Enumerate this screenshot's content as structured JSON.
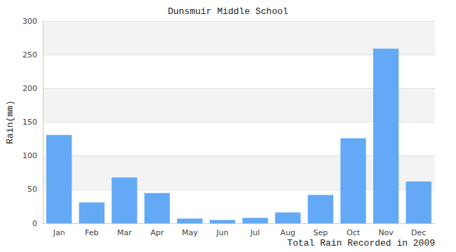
{
  "chart_data": {
    "type": "bar",
    "title": "Dunsmuir Middle School",
    "x_label": "Total Rain Recorded in 2009",
    "y_label": "Rain(mm)",
    "categories": [
      "Jan",
      "Feb",
      "Mar",
      "Apr",
      "May",
      "Jun",
      "Jul",
      "Aug",
      "Sep",
      "Oct",
      "Nov",
      "Dec"
    ],
    "values": [
      131,
      31,
      68,
      45,
      7,
      5,
      8,
      16,
      42,
      126,
      259,
      62
    ],
    "color": "#63a9f5",
    "ylim": [
      0,
      300
    ],
    "yticks": [
      0,
      50,
      100,
      150,
      200,
      250,
      300
    ],
    "grid": true
  }
}
